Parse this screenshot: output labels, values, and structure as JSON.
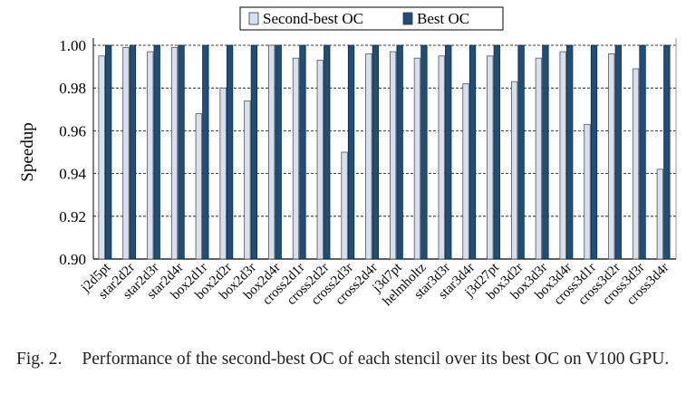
{
  "chart_data": {
    "type": "bar",
    "title": "",
    "xlabel": "",
    "ylabel": "Speedup",
    "ylim": [
      0.9,
      1.0
    ],
    "yticks": [
      "0.90",
      "0.92",
      "0.94",
      "0.96",
      "0.98",
      "1.00"
    ],
    "grid": true,
    "legend_placement": "top-center",
    "categories": [
      "j2d5pt",
      "star2d2r",
      "star2d3r",
      "star2d4r",
      "box2d1r",
      "box2d2r",
      "box2d3r",
      "box2d4r",
      "cross2d1r",
      "cross2d2r",
      "cross2d3r",
      "cross2d4r",
      "j3d7pt",
      "helmholtz",
      "star3d3r",
      "star3d4r",
      "j3d27pt",
      "box3d2r",
      "box3d3r",
      "box3d4r",
      "cross3d1r",
      "cross3d2r",
      "cross3d3r",
      "cross3d4r"
    ],
    "series": [
      {
        "name": "Second-best OC",
        "color": "#d6e0f0",
        "values": [
          0.995,
          0.999,
          0.997,
          0.999,
          0.968,
          0.98,
          0.974,
          1.0,
          0.994,
          0.993,
          0.95,
          0.996,
          0.997,
          0.994,
          0.995,
          0.982,
          0.995,
          0.983,
          0.994,
          0.997,
          0.963,
          0.996,
          0.989,
          0.942
        ]
      },
      {
        "name": "Best OC",
        "color": "#1f4e79",
        "values": [
          1,
          1,
          1,
          1,
          1,
          1,
          1,
          1,
          1,
          1,
          1,
          1,
          1,
          1,
          1,
          1,
          1,
          1,
          1,
          1,
          1,
          1,
          1,
          1
        ]
      }
    ]
  },
  "caption": {
    "label": "Fig. 2.",
    "text": "Performance of the second-best OC of each stencil over its best OC on V100 GPU."
  }
}
